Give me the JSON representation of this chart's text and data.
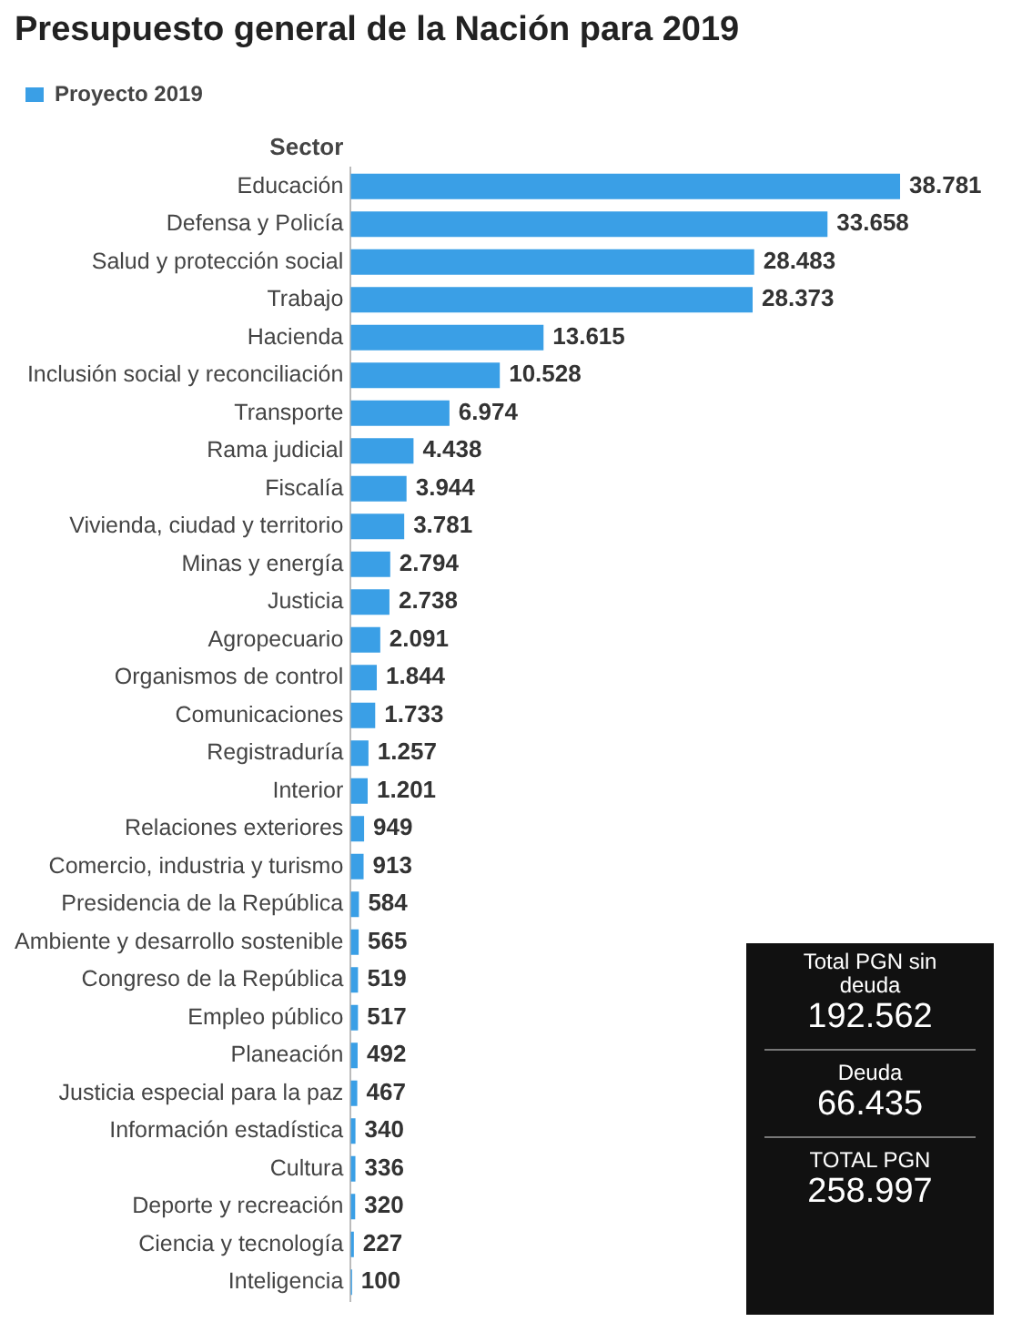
{
  "chart_data": {
    "type": "bar",
    "orientation": "horizontal",
    "title": "Presupuesto general de la Nación para 2019",
    "ylabel": "Sector",
    "categories": [
      "Educación",
      "Defensa y Policía",
      "Salud y protección social",
      "Trabajo",
      "Hacienda",
      "Inclusión social y reconciliación",
      "Transporte",
      "Rama judicial",
      "Fiscalía",
      "Vivienda, ciudad y territorio",
      "Minas y energía",
      "Justicia",
      "Agropecuario",
      "Organismos de control",
      "Comunicaciones",
      "Registraduría",
      "Interior",
      "Relaciones exteriores",
      "Comercio, industria y turismo",
      "Presidencia de la República",
      "Ambiente y desarrollo sostenible",
      "Congreso de la República",
      "Empleo público",
      "Planeación",
      "Justicia especial para la paz",
      "Información estadística",
      "Cultura",
      "Deporte y recreación",
      "Ciencia y tecnología",
      "Inteligencia"
    ],
    "series": [
      {
        "name": "Proyecto 2019",
        "color": "#3a9fe6",
        "values": [
          38781,
          33658,
          28483,
          28373,
          13615,
          10528,
          6974,
          4438,
          3944,
          3781,
          2794,
          2738,
          2091,
          1844,
          1733,
          1257,
          1201,
          949,
          913,
          584,
          565,
          519,
          517,
          492,
          467,
          340,
          336,
          320,
          227,
          100
        ],
        "value_labels": [
          "38.781",
          "33.658",
          "28.483",
          "28.373",
          "13.615",
          "10.528",
          "6.974",
          "4.438",
          "3.944",
          "3.781",
          "2.794",
          "2.738",
          "2.091",
          "1.844",
          "1.733",
          "1.257",
          "1.201",
          "949",
          "913",
          "584",
          "565",
          "519",
          "517",
          "492",
          "467",
          "340",
          "336",
          "320",
          "227",
          "100"
        ]
      }
    ],
    "annotations": [
      "Total PGN sin deuda",
      "192.562",
      "Deuda",
      "66.435",
      "TOTAL PGN",
      "258.997"
    ],
    "legend": "top left",
    "grid": false,
    "tick_labels": "y"
  }
}
